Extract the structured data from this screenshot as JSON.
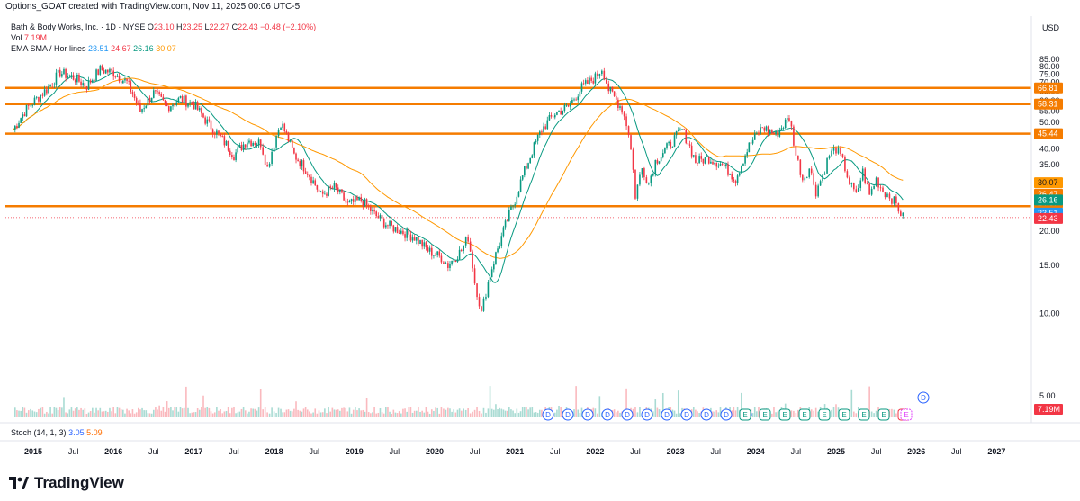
{
  "header": {
    "attribution": "Options_GOAT created with TradingView.com, Nov 11, 2025 00:06 UTC-5"
  },
  "legend": {
    "symbol": "Bath & Body Works, Inc. · 1D · NYSE",
    "o_label": "O",
    "o_value": "23.10",
    "h_label": "H",
    "h_value": "23.25",
    "l_label": "L",
    "l_value": "22.27",
    "c_label": "C",
    "c_value": "22.43",
    "change": "−0.48 (−2.10%)",
    "vol_label": "Vol",
    "vol_value": "7.19M",
    "ema_label": "EMA SMA / Hor lines",
    "ema_values": [
      "23.51",
      "24.67",
      "26.16",
      "30.07"
    ],
    "ema_colors": [
      "#2196f3",
      "#f23645",
      "#089981",
      "#ff9800"
    ]
  },
  "stoch": {
    "label": "Stoch (14, 1, 3)",
    "k": "3.05",
    "d": "5.09",
    "k_color": "#2962ff",
    "d_color": "#ff6d00"
  },
  "currency": "USD",
  "price_axis_labels": [
    "85.00",
    "80.00",
    "75.00",
    "70.00",
    "65.00",
    "60.00",
    "55.00",
    "50.00",
    "45.00",
    "40.00",
    "35.00",
    "30.00",
    "25.00",
    "20.00",
    "15.00",
    "10.00",
    "5.00"
  ],
  "time_axis_labels": [
    "2015",
    "Jul",
    "2016",
    "Jul",
    "2017",
    "Jul",
    "2018",
    "Jul",
    "2019",
    "Jul",
    "2020",
    "Jul",
    "2021",
    "Jul",
    "2022",
    "Jul",
    "2023",
    "Jul",
    "2024",
    "Jul",
    "2025",
    "Jul",
    "2026",
    "Jul",
    "2027"
  ],
  "tags": {
    "current_price": "22.43",
    "volume": "7.19M"
  },
  "event_markers": [
    "D",
    "D",
    "D",
    "D",
    "D",
    "D",
    "D",
    "D",
    "D",
    "D",
    "D",
    "E",
    "E",
    "E",
    "E",
    "E",
    "E",
    "E",
    "E",
    "E",
    "D"
  ],
  "branding": {
    "wordmark": "TradingView"
  },
  "colors": {
    "up": "#089981",
    "down": "#f23645",
    "hline": "#f57c00",
    "ema_fast": "#089981",
    "ema_slow": "#ff9800",
    "dividend": "#2962ff",
    "earnings": "#089981",
    "earnings_recent": "#f23645",
    "earnings_upcoming": "#e040fb"
  },
  "chart_data": {
    "type": "line",
    "title": "Bath & Body Works, Inc. · 1D · NYSE",
    "x_range": [
      "2014-10",
      "2027-06"
    ],
    "ylim": [
      0,
      88
    ],
    "y_scale": "log",
    "close_path": [
      [
        "2014-10",
        47
      ],
      [
        "2014-12",
        56
      ],
      [
        "2015-03",
        66
      ],
      [
        "2015-05",
        76
      ],
      [
        "2015-07",
        73
      ],
      [
        "2015-09",
        68
      ],
      [
        "2015-11",
        78
      ],
      [
        "2016-01",
        76
      ],
      [
        "2016-03",
        70
      ],
      [
        "2016-05",
        55
      ],
      [
        "2016-07",
        64
      ],
      [
        "2016-09",
        57
      ],
      [
        "2016-11",
        61
      ],
      [
        "2017-01",
        58
      ],
      [
        "2017-03",
        50
      ],
      [
        "2017-05",
        44
      ],
      [
        "2017-07",
        38
      ],
      [
        "2017-09",
        43
      ],
      [
        "2017-11",
        42
      ],
      [
        "2017-12",
        34
      ],
      [
        "2018-01",
        42
      ],
      [
        "2018-02",
        50
      ],
      [
        "2018-04",
        38
      ],
      [
        "2018-06",
        33
      ],
      [
        "2018-08",
        27
      ],
      [
        "2018-10",
        29
      ],
      [
        "2018-12",
        25
      ],
      [
        "2019-02",
        26
      ],
      [
        "2019-04",
        23
      ],
      [
        "2019-06",
        21
      ],
      [
        "2019-08",
        20
      ],
      [
        "2019-10",
        19
      ],
      [
        "2019-12",
        17
      ],
      [
        "2020-02",
        16
      ],
      [
        "2020-03",
        15
      ],
      [
        "2020-05",
        17
      ],
      [
        "2020-06",
        19
      ],
      [
        "2020-07",
        13
      ],
      [
        "2020-08",
        10
      ],
      [
        "2020-09",
        13
      ],
      [
        "2020-11",
        19
      ],
      [
        "2021-01",
        26
      ],
      [
        "2021-03",
        36
      ],
      [
        "2021-05",
        47
      ],
      [
        "2021-07",
        54
      ],
      [
        "2021-09",
        57
      ],
      [
        "2021-11",
        67
      ],
      [
        "2022-01",
        73
      ],
      [
        "2022-02",
        79
      ],
      [
        "2022-03",
        66
      ],
      [
        "2022-05",
        56
      ],
      [
        "2022-06",
        46
      ],
      [
        "2022-07",
        27
      ],
      [
        "2022-08",
        34
      ],
      [
        "2022-09",
        30
      ],
      [
        "2022-10",
        36
      ],
      [
        "2022-12",
        41
      ],
      [
        "2023-02",
        47
      ],
      [
        "2023-04",
        36
      ],
      [
        "2023-06",
        37
      ],
      [
        "2023-08",
        35
      ],
      [
        "2023-10",
        31
      ],
      [
        "2023-12",
        41
      ],
      [
        "2024-02",
        48
      ],
      [
        "2024-04",
        45
      ],
      [
        "2024-06",
        52
      ],
      [
        "2024-07",
        38
      ],
      [
        "2024-08",
        31
      ],
      [
        "2024-09",
        34
      ],
      [
        "2024-10",
        28
      ],
      [
        "2024-11",
        32
      ],
      [
        "2024-12",
        38
      ],
      [
        "2025-01",
        40
      ],
      [
        "2025-02",
        36
      ],
      [
        "2025-03",
        30
      ],
      [
        "2025-04",
        27
      ],
      [
        "2025-05",
        33
      ],
      [
        "2025-06",
        27
      ],
      [
        "2025-07",
        31
      ],
      [
        "2025-08",
        28
      ],
      [
        "2025-09",
        27
      ],
      [
        "2025-10",
        25
      ],
      [
        "2025-11",
        22.43
      ]
    ],
    "series": [
      {
        "name": "EMA",
        "value": 23.51
      },
      {
        "name": "EMA",
        "value": 24.67
      },
      {
        "name": "SMA",
        "value": 26.16
      },
      {
        "name": "SMA",
        "value": 30.07
      }
    ],
    "horizontal_lines": [
      66.81,
      58.31,
      45.44,
      24.67
    ],
    "legend_position": "top-left"
  }
}
